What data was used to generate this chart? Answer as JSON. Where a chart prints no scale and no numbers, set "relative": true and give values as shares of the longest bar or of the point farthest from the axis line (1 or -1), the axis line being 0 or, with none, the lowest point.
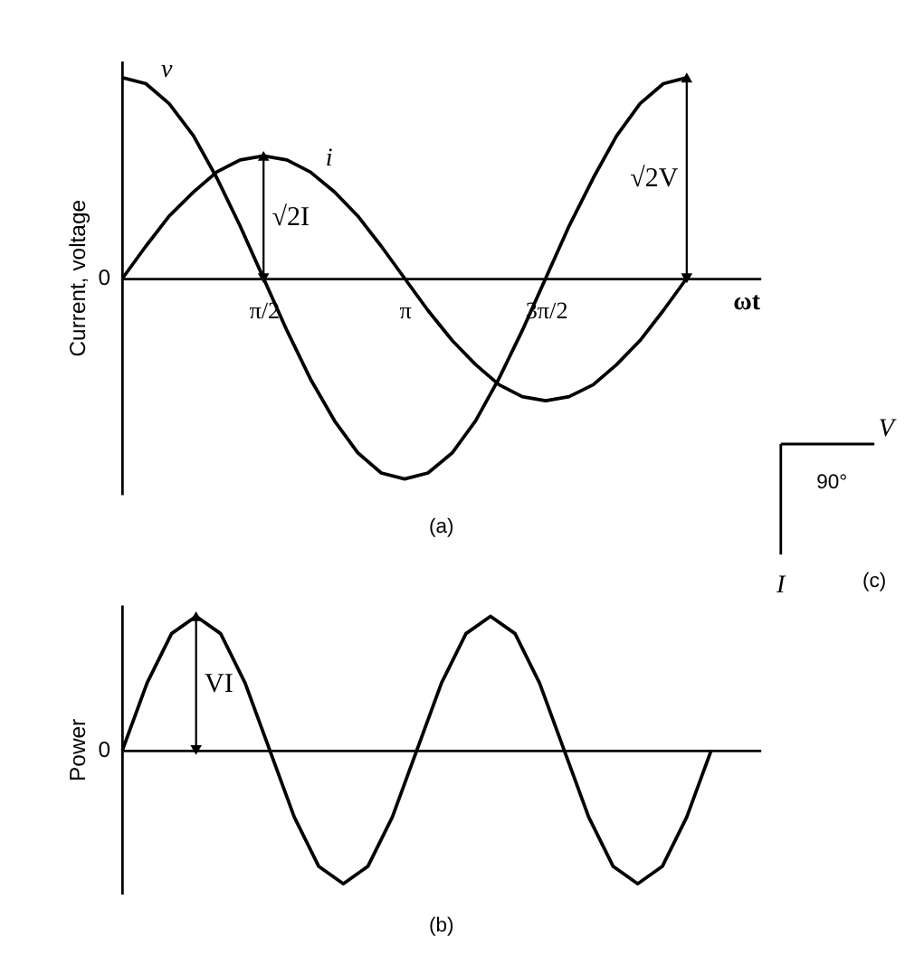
{
  "chart_data": [
    {
      "type": "line",
      "relative": true,
      "ylabel": "Current, voltage",
      "xlabel": "ωt",
      "xlim": [
        0,
        7.1
      ],
      "xticks": [
        {
          "value": 1.5708,
          "label": "π/2"
        },
        {
          "value": 3.1416,
          "label": "π"
        },
        {
          "value": 4.7124,
          "label": "3π/2"
        }
      ],
      "tick_labels": "x",
      "x": [
        0,
        0.26,
        0.52,
        0.79,
        1.05,
        1.31,
        1.57,
        1.83,
        2.09,
        2.36,
        2.62,
        2.88,
        3.14,
        3.4,
        3.67,
        3.93,
        4.19,
        4.45,
        4.71,
        4.97,
        5.24,
        5.5,
        5.76,
        6.02,
        6.28
      ],
      "series": [
        {
          "name": "v",
          "color": "#000000",
          "values": [
            1,
            0.97,
            0.87,
            0.71,
            0.5,
            0.26,
            0,
            -0.26,
            -0.5,
            -0.71,
            -0.87,
            -0.97,
            -1,
            -0.97,
            -0.87,
            -0.71,
            -0.5,
            -0.26,
            0,
            0.26,
            0.5,
            0.71,
            0.87,
            0.97,
            1
          ]
        },
        {
          "name": "i",
          "color": "#000000",
          "values": [
            0,
            0.16,
            0.31,
            0.43,
            0.53,
            0.59,
            0.61,
            0.59,
            0.53,
            0.43,
            0.31,
            0.16,
            0,
            -0.16,
            -0.31,
            -0.43,
            -0.53,
            -0.59,
            -0.61,
            -0.59,
            -0.53,
            -0.43,
            -0.31,
            -0.16,
            0
          ]
        }
      ],
      "annotations": [
        "0",
        "√2I",
        "√2V",
        "(a)"
      ]
    },
    {
      "type": "line",
      "relative": true,
      "ylabel": "Power",
      "tick_labels": false,
      "categories": [
        null,
        null,
        null,
        null,
        null,
        null,
        null,
        null,
        null,
        null,
        null,
        null,
        null,
        null,
        null,
        null,
        null,
        null,
        null,
        null,
        null,
        null,
        null,
        null,
        null
      ],
      "series": [
        {
          "color": "#000000",
          "values": [
            0,
            0.5,
            0.87,
            1,
            0.87,
            0.5,
            0,
            -0.5,
            -0.87,
            -1,
            -0.87,
            -0.5,
            0,
            0.5,
            0.87,
            1,
            0.87,
            0.5,
            0,
            -0.5,
            -0.87,
            -1,
            -0.87,
            -0.5,
            0
          ]
        }
      ],
      "annotations": [
        "0",
        "VI",
        "(b)"
      ]
    },
    {
      "type": "other",
      "annotations": [
        "V",
        "I",
        "90°",
        "(c)"
      ]
    }
  ]
}
